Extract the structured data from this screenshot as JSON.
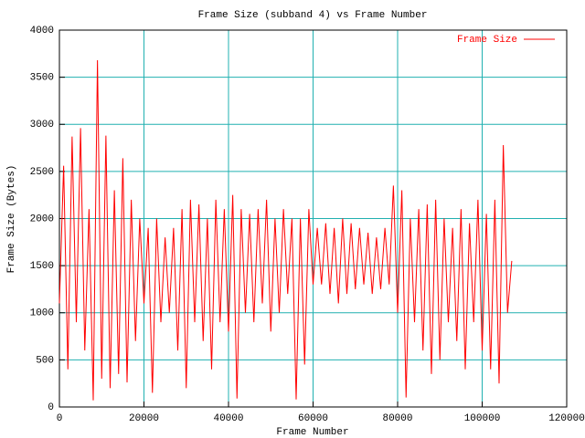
{
  "chart_data": {
    "type": "line",
    "title": "Frame Size (subband 4) vs Frame Number",
    "x_label": "Frame Number",
    "y_label": "Frame Size (Bytes)",
    "x": [
      0,
      1000,
      2000,
      3000,
      4000,
      5000,
      6000,
      7000,
      8000,
      9000,
      10000,
      11000,
      12000,
      13000,
      14000,
      15000,
      16000,
      17000,
      18000,
      19000,
      20000,
      21000,
      22000,
      23000,
      24000,
      25000,
      26000,
      27000,
      28000,
      29000,
      30000,
      31000,
      32000,
      33000,
      34000,
      35000,
      36000,
      37000,
      38000,
      39000,
      40000,
      41000,
      42000,
      43000,
      44000,
      45000,
      46000,
      47000,
      48000,
      49000,
      50000,
      51000,
      52000,
      53000,
      54000,
      55000,
      56000,
      57000,
      58000,
      59000,
      60000,
      61000,
      62000,
      63000,
      64000,
      65000,
      66000,
      67000,
      68000,
      69000,
      70000,
      71000,
      72000,
      73000,
      74000,
      75000,
      76000,
      77000,
      78000,
      79000,
      80000,
      81000,
      82000,
      83000,
      84000,
      85000,
      86000,
      87000,
      88000,
      89000,
      90000,
      91000,
      92000,
      93000,
      94000,
      95000,
      96000,
      97000,
      98000,
      99000,
      100000,
      101000,
      102000,
      103000,
      104000,
      105000,
      106000,
      107000
    ],
    "series": [
      {
        "name": "Frame Size",
        "color": "#ff0000",
        "values": [
          1100,
          2560,
          400,
          2870,
          900,
          2960,
          600,
          2100,
          70,
          3680,
          300,
          2880,
          200,
          2300,
          350,
          2640,
          260,
          2200,
          700,
          2000,
          1100,
          1900,
          150,
          2000,
          900,
          1800,
          1000,
          1900,
          600,
          2100,
          200,
          2200,
          900,
          2150,
          700,
          2000,
          400,
          2200,
          900,
          2100,
          800,
          2250,
          90,
          2100,
          1000,
          2050,
          900,
          2100,
          1100,
          2200,
          800,
          2000,
          1000,
          2100,
          1200,
          2000,
          80,
          2000,
          450,
          2100,
          1300,
          1900,
          1300,
          1950,
          1200,
          1900,
          1100,
          2000,
          1200,
          1950,
          1250,
          1900,
          1300,
          1850,
          1200,
          1800,
          1250,
          1900,
          1300,
          2350,
          1000,
          2300,
          100,
          2000,
          900,
          2100,
          600,
          2150,
          350,
          2200,
          500,
          2000,
          900,
          1900,
          700,
          2100,
          400,
          1950,
          900,
          2200,
          600,
          2050,
          400,
          2200,
          250,
          2780,
          1000,
          1550
        ]
      }
    ],
    "xlim": [
      0,
      120000
    ],
    "xticks": [
      0,
      20000,
      40000,
      60000,
      80000,
      100000,
      120000
    ],
    "ylim": [
      0,
      4000
    ],
    "yticks": [
      0,
      500,
      1000,
      1500,
      2000,
      2500,
      3000,
      3500,
      4000
    ],
    "grid": true,
    "grid_color": "#20b0b0",
    "legend": "top-right"
  }
}
